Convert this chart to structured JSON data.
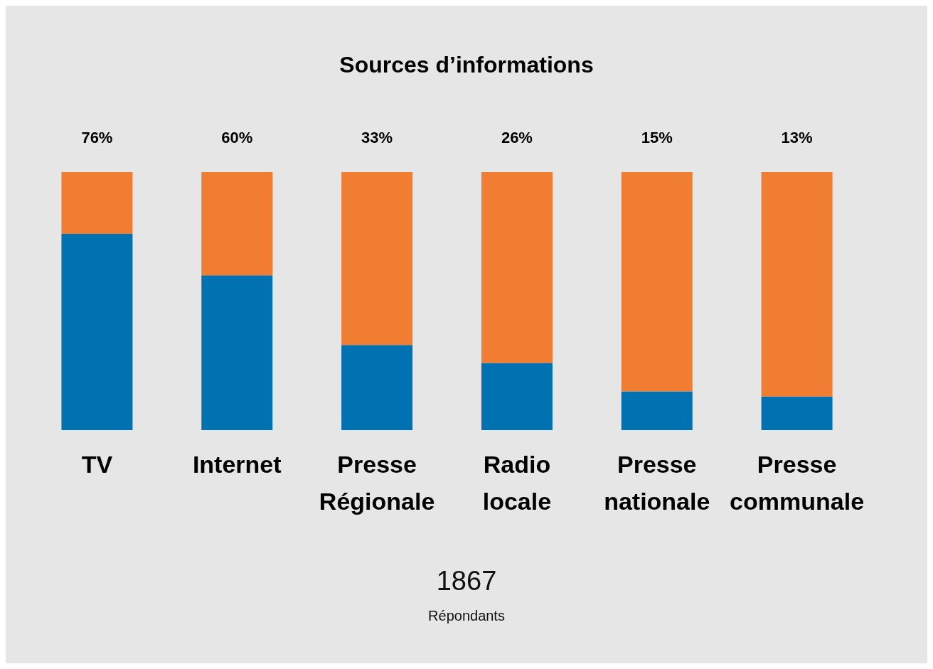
{
  "chart_data": {
    "type": "bar",
    "title": "Sources d’informations",
    "categories": [
      "TV",
      "Internet",
      "Presse Régionale",
      "Radio locale",
      "Presse nationale",
      "Presse communale"
    ],
    "stacked": true,
    "series": [
      {
        "color": "#0072b2",
        "values": [
          76,
          60,
          33,
          26,
          15,
          13
        ],
        "value_labels": [
          "76%",
          "60%",
          "33%",
          "26%",
          "15%",
          "13%"
        ]
      },
      {
        "color": "#f07d31",
        "values": [
          24,
          40,
          67,
          74,
          85,
          87
        ]
      }
    ],
    "ylim": [
      0,
      100
    ],
    "tick_labels": "x",
    "annotations": [
      "1867",
      "Répondants"
    ]
  }
}
